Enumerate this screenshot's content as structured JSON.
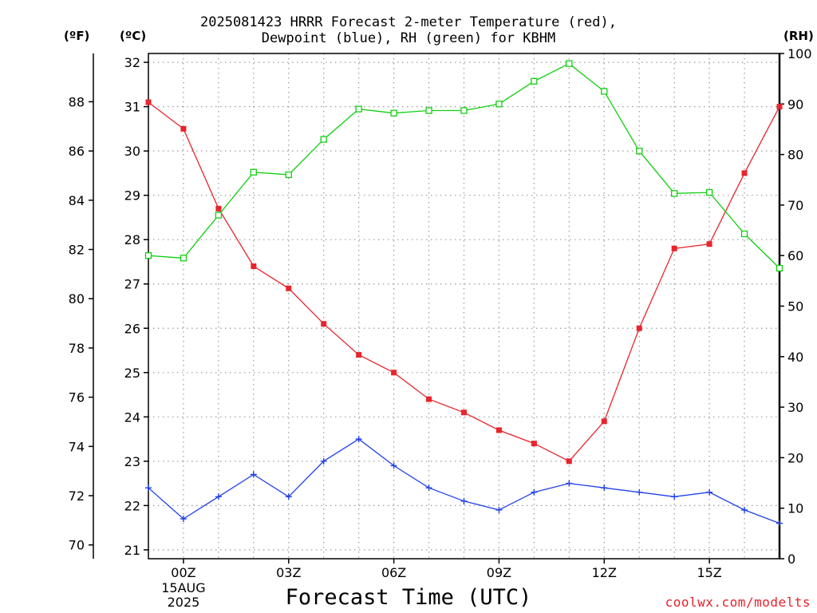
{
  "title_line1": "2025081423 HRRR Forecast 2-meter Temperature (red),",
  "title_line2": "Dewpoint (blue), RH (green) for KBHM",
  "units": {
    "fahrenheit": "(ºF)",
    "celsius": "(ºC)",
    "rh": "(RH)"
  },
  "xlabel": "Forecast Time (UTC)",
  "credit": "coolwx.com/modelts",
  "chart_data": {
    "type": "line",
    "title": "2025081423 HRRR Forecast 2-meter Temperature (red), Dewpoint (blue), RH (green) for KBHM",
    "xlabel": "Forecast Time (UTC)",
    "x_hours": [
      -1,
      0,
      1,
      2,
      3,
      4,
      5,
      6,
      7,
      8,
      9,
      10,
      11,
      12,
      13,
      14,
      15,
      16,
      17
    ],
    "x_ticks": [
      {
        "hour": 0,
        "label": "00Z",
        "sub": [
          "15AUG",
          "2025"
        ]
      },
      {
        "hour": 3,
        "label": "03Z"
      },
      {
        "hour": 6,
        "label": "06Z"
      },
      {
        "hour": 9,
        "label": "09Z"
      },
      {
        "hour": 12,
        "label": "12Z"
      },
      {
        "hour": 15,
        "label": "15Z"
      }
    ],
    "xlim": [
      -1,
      17
    ],
    "celsius_axis": {
      "label": "(ºC)",
      "range": [
        20.8,
        32.2
      ],
      "ticks": [
        21,
        22,
        23,
        24,
        25,
        26,
        27,
        28,
        29,
        30,
        31,
        32
      ]
    },
    "fahrenheit_axis": {
      "label": "(ºF)",
      "ticks": [
        70,
        72,
        74,
        76,
        78,
        80,
        82,
        84,
        86,
        88
      ]
    },
    "rh_axis": {
      "label": "(RH)",
      "range": [
        0,
        100
      ],
      "ticks": [
        0,
        10,
        20,
        30,
        40,
        50,
        60,
        70,
        80,
        90,
        100
      ]
    },
    "grid": true,
    "colors": {
      "temperature": "#e8242c",
      "dewpoint": "#2040e8",
      "rh": "#10d010"
    },
    "series": [
      {
        "name": "Temperature",
        "axis": "celsius",
        "marker": "filled-square",
        "values": [
          31.1,
          30.5,
          28.7,
          27.4,
          26.9,
          26.1,
          25.4,
          25.0,
          24.4,
          24.1,
          23.7,
          23.4,
          23.0,
          23.9,
          26.0,
          27.8,
          27.9,
          29.5,
          31.0
        ]
      },
      {
        "name": "Dewpoint",
        "axis": "celsius",
        "marker": "plus",
        "values": [
          22.4,
          21.7,
          22.2,
          22.7,
          22.2,
          23.0,
          23.5,
          22.9,
          22.4,
          22.1,
          21.9,
          22.3,
          22.5,
          22.4,
          22.3,
          22.2,
          22.3,
          21.9,
          21.6
        ]
      },
      {
        "name": "RH",
        "axis": "rh",
        "marker": "open-square",
        "values": [
          60.0,
          59.5,
          68.0,
          76.5,
          76.0,
          83.0,
          89.0,
          88.2,
          88.7,
          88.7,
          90.0,
          94.5,
          98.0,
          92.5,
          80.7,
          72.3,
          72.5,
          64.3,
          57.5
        ]
      }
    ]
  }
}
